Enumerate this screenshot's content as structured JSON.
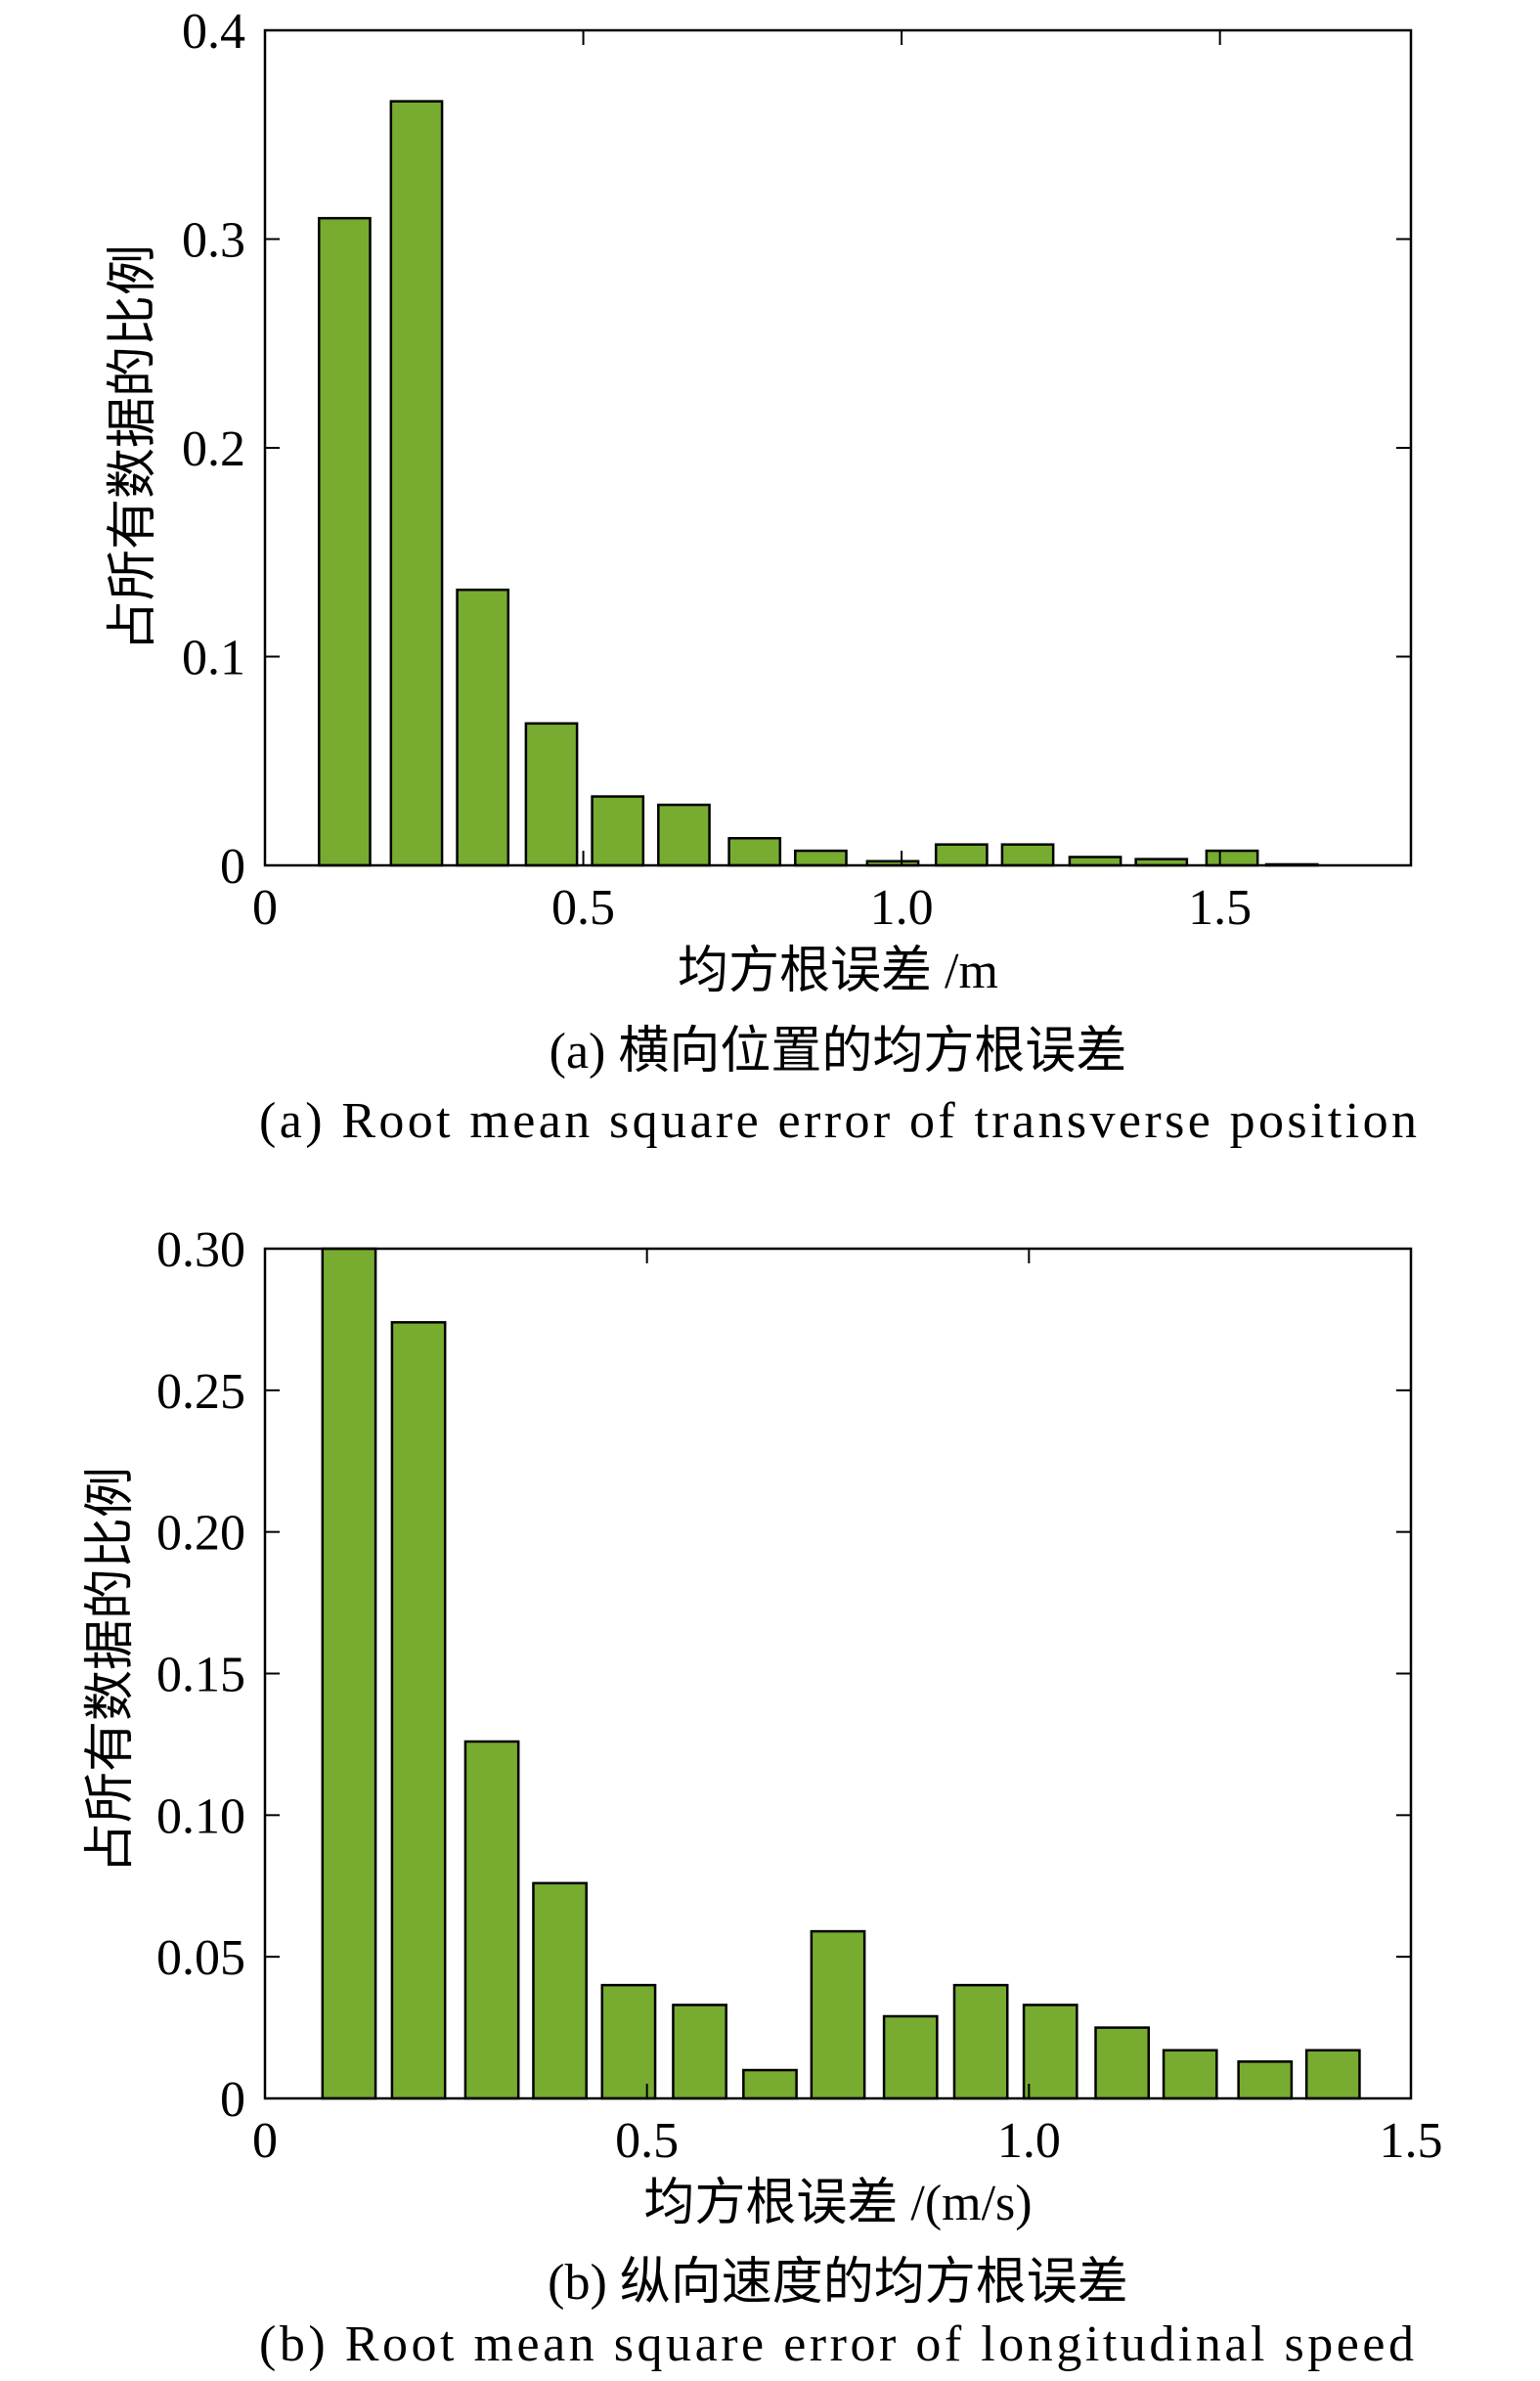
{
  "chart_data": [
    {
      "type": "bar",
      "x": [
        0.125,
        0.238,
        0.342,
        0.45,
        0.554,
        0.658,
        0.769,
        0.873,
        0.986,
        1.094,
        1.198,
        1.304,
        1.408,
        1.519,
        1.613
      ],
      "values": [
        0.31,
        0.366,
        0.132,
        0.068,
        0.033,
        0.029,
        0.013,
        0.007,
        0.002,
        0.01,
        0.01,
        0.004,
        0.003,
        0.007,
        0.0005
      ],
      "xlabel": "均方根误差 /m",
      "ylabel": "占所有数据的比例",
      "xlim": [
        0,
        1.8
      ],
      "ylim": [
        0,
        0.4
      ],
      "xticks": [
        0,
        0.5,
        1.0,
        1.5
      ],
      "xtick_labels": [
        "0",
        "0.5",
        "1.0",
        "1.5"
      ],
      "yticks": [
        0,
        0.1,
        0.2,
        0.3,
        0.4
      ],
      "ytick_labels": [
        "0",
        "0.1",
        "0.2",
        "0.3",
        "0.4"
      ],
      "grid": false,
      "caption_zh": "(a) 横向位置的均方根误差",
      "caption_en": "(a) Root mean square error of transverse position"
    },
    {
      "type": "bar",
      "x": [
        0.11,
        0.201,
        0.297,
        0.386,
        0.476,
        0.569,
        0.661,
        0.75,
        0.845,
        0.937,
        1.028,
        1.122,
        1.211,
        1.309,
        1.398
      ],
      "values": [
        0.3,
        0.274,
        0.126,
        0.076,
        0.04,
        0.033,
        0.01,
        0.059,
        0.029,
        0.04,
        0.033,
        0.025,
        0.017,
        0.013,
        0.017
      ],
      "xlabel": "均方根误差 /(m/s)",
      "ylabel": "占所有数据的比例",
      "xlim": [
        0,
        1.5
      ],
      "ylim": [
        0,
        0.3
      ],
      "xticks": [
        0,
        0.5,
        1.0,
        1.5
      ],
      "xtick_labels": [
        "0",
        "0.5",
        "1.0",
        "1.5"
      ],
      "yticks": [
        0,
        0.05,
        0.1,
        0.15,
        0.2,
        0.25,
        0.3
      ],
      "ytick_labels": [
        "0",
        "0.05",
        "0.10",
        "0.15",
        "0.20",
        "0.25",
        "0.30"
      ],
      "grid": false,
      "caption_zh": "(b) 纵向速度的均方根误差",
      "caption_en": "(b) Root mean square error of longitudinal speed"
    }
  ],
  "colors": {
    "bar_fill": "#77AC30",
    "bar_edge": "#000000",
    "axis": "#000000",
    "background": "#FFFFFF"
  }
}
